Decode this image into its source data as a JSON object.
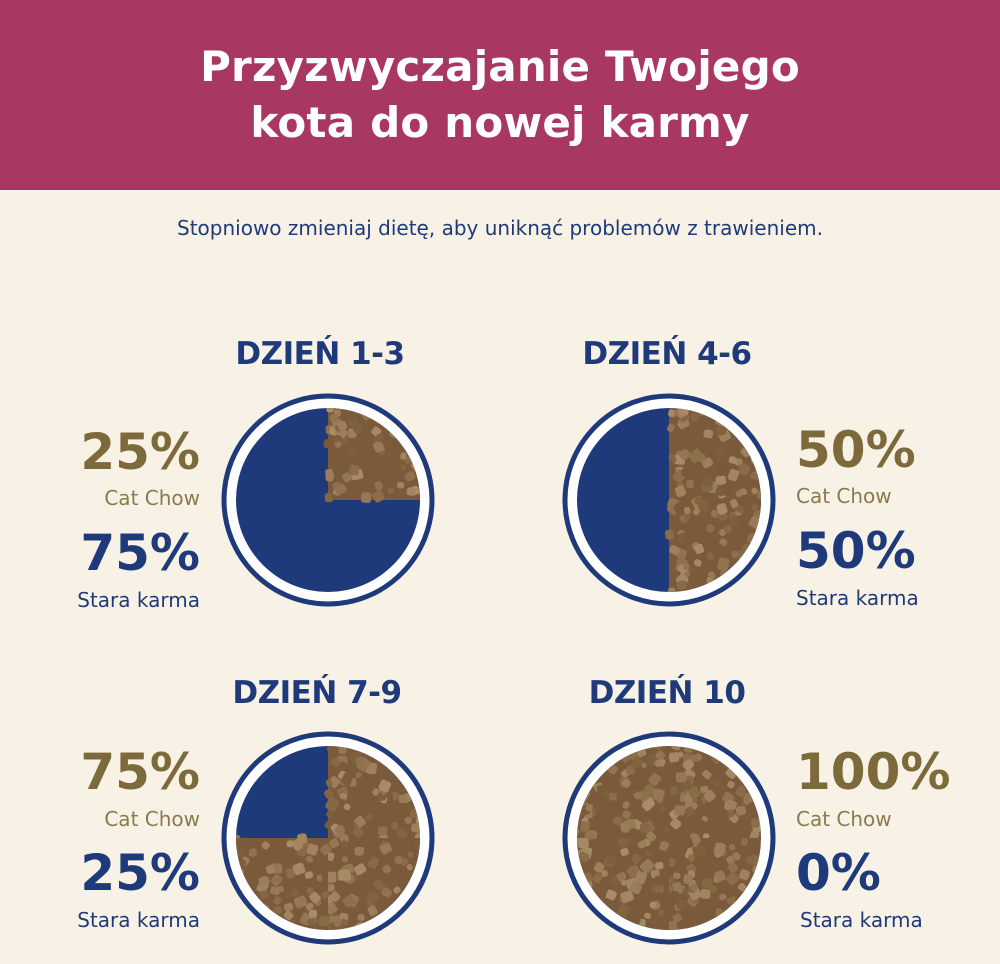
{
  "header": {
    "title_line1": "Przyzwyczajanie Twojego",
    "title_line2": "kota do nowej karmy"
  },
  "subtitle": "Stopniowo zmieniaj dietę, aby uniknąć problemów z trawieniem.",
  "colors": {
    "header_bg": "#a83862",
    "background": "#f8f2e6",
    "navy": "#1f3a7a",
    "gold": "#7d6a3a",
    "kibble": "#8a6a47"
  },
  "stages": [
    {
      "day": "DZIEŃ 1-3",
      "new_pct": "25%",
      "new_label": "Cat Chow",
      "old_pct": "75%",
      "old_label": "Stara karma",
      "new_fraction": 0.25
    },
    {
      "day": "DZIEŃ 4-6",
      "new_pct": "50%",
      "new_label": "Cat Chow",
      "old_pct": "50%",
      "old_label": "Stara karma",
      "new_fraction": 0.5
    },
    {
      "day": "DZIEŃ 7-9",
      "new_pct": "75%",
      "new_label": "Cat Chow",
      "old_pct": "25%",
      "old_label": "Stara karma",
      "new_fraction": 0.75
    },
    {
      "day": "DZIEŃ 10",
      "new_pct": "100%",
      "new_label": "Cat Chow",
      "old_pct": "0%",
      "old_label": "Stara karma",
      "new_fraction": 1.0
    }
  ]
}
